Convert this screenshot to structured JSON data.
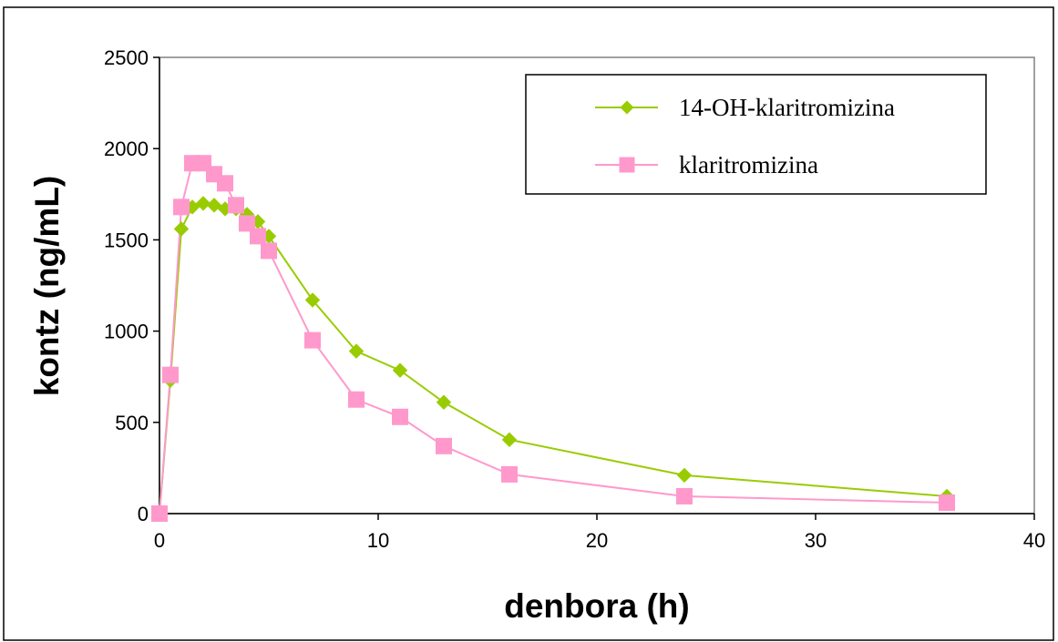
{
  "chart_data": {
    "type": "line",
    "title": "",
    "xlabel": "denbora (h)",
    "ylabel": "kontz (ng/mL)",
    "xlim": [
      0,
      40
    ],
    "ylim": [
      0,
      2500
    ],
    "xticks": [
      0,
      10,
      20,
      30,
      40
    ],
    "yticks": [
      0,
      500,
      1000,
      1500,
      2000,
      2500
    ],
    "grid": false,
    "legend_position": "top-right",
    "series": [
      {
        "name": "14-OH-klaritromizina",
        "color": "#99cc00",
        "marker": "diamond",
        "x": [
          0,
          0.5,
          1,
          1.5,
          2,
          2.5,
          3,
          3.5,
          4,
          4.5,
          5,
          7,
          9,
          11,
          13,
          16,
          24,
          36
        ],
        "y": [
          0,
          730,
          1560,
          1680,
          1700,
          1690,
          1670,
          1670,
          1640,
          1600,
          1520,
          1170,
          890,
          785,
          610,
          405,
          210,
          95
        ]
      },
      {
        "name": "klaritromizina",
        "color": "#ff99cc",
        "marker": "square",
        "x": [
          0,
          0.5,
          1,
          1.5,
          2,
          2.5,
          3,
          3.5,
          4,
          4.5,
          5,
          7,
          9,
          11,
          13,
          16,
          24,
          36
        ],
        "y": [
          0,
          760,
          1680,
          1920,
          1920,
          1860,
          1810,
          1690,
          1590,
          1520,
          1440,
          950,
          625,
          530,
          370,
          215,
          95,
          60
        ]
      }
    ]
  }
}
